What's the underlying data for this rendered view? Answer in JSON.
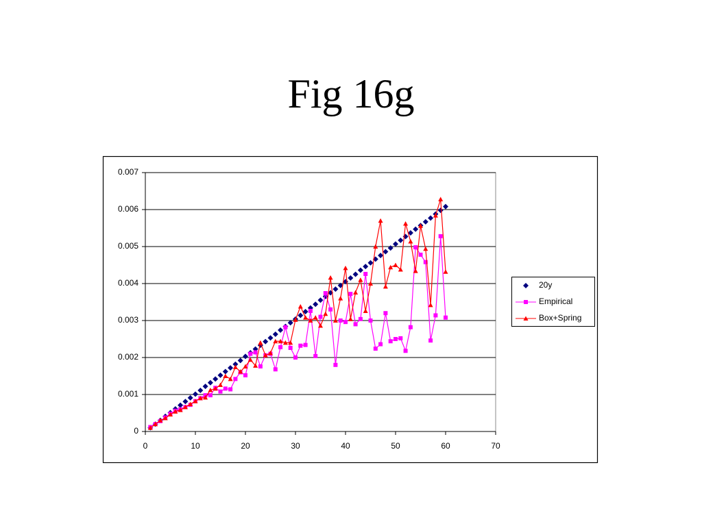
{
  "slide_title": "Fig 16g",
  "chart_data": {
    "type": "scatter",
    "x": [
      1,
      2,
      3,
      4,
      5,
      6,
      7,
      8,
      9,
      10,
      11,
      12,
      13,
      14,
      15,
      16,
      17,
      18,
      19,
      20,
      21,
      22,
      23,
      24,
      25,
      26,
      27,
      28,
      29,
      30,
      31,
      32,
      33,
      34,
      35,
      36,
      37,
      38,
      39,
      40,
      41,
      42,
      43,
      44,
      45,
      46,
      47,
      48,
      49,
      50,
      51,
      52,
      53,
      54,
      55,
      56,
      57,
      58,
      59,
      60
    ],
    "xlim": [
      0,
      70
    ],
    "xticks": [
      0,
      10,
      20,
      30,
      40,
      50,
      60,
      70
    ],
    "ylim": [
      0,
      0.007
    ],
    "yticks": [
      0,
      0.001,
      0.002,
      0.003,
      0.004,
      0.005,
      0.006,
      0.007
    ],
    "grid": true,
    "legend": "right",
    "series": [
      {
        "name": "20y",
        "color": "#000080",
        "marker": "diamond",
        "line": false,
        "values": [
          0.0001,
          0.0002,
          0.0003,
          0.00041,
          0.00051,
          0.00061,
          0.00071,
          0.00081,
          0.00091,
          0.00101,
          0.00111,
          0.00122,
          0.00132,
          0.00142,
          0.00152,
          0.00162,
          0.00172,
          0.00182,
          0.00192,
          0.00203,
          0.00213,
          0.00223,
          0.00233,
          0.00243,
          0.00253,
          0.00263,
          0.00274,
          0.00284,
          0.00294,
          0.00304,
          0.00314,
          0.00324,
          0.00334,
          0.00344,
          0.00355,
          0.00365,
          0.00375,
          0.00385,
          0.00395,
          0.00405,
          0.00415,
          0.00425,
          0.00436,
          0.00446,
          0.00456,
          0.00466,
          0.00476,
          0.00486,
          0.00496,
          0.00507,
          0.00517,
          0.00527,
          0.00537,
          0.00547,
          0.00557,
          0.00567,
          0.00577,
          0.00588,
          0.00598,
          0.00608
        ]
      },
      {
        "name": "Empirical",
        "color": "#ff00ff",
        "marker": "square",
        "line": true,
        "values": [
          0.00012,
          0.0002,
          0.00028,
          0.00038,
          0.00048,
          0.00056,
          0.0006,
          0.00066,
          0.00072,
          0.00082,
          0.0009,
          0.00098,
          0.00098,
          0.00118,
          0.00108,
          0.00116,
          0.00114,
          0.00142,
          0.0016,
          0.00152,
          0.0021,
          0.00214,
          0.00176,
          0.00206,
          0.0021,
          0.00168,
          0.00228,
          0.00282,
          0.00226,
          0.002,
          0.00232,
          0.00234,
          0.00326,
          0.00204,
          0.0031,
          0.00374,
          0.0033,
          0.0018,
          0.003,
          0.00296,
          0.00372,
          0.0029,
          0.00304,
          0.00426,
          0.003,
          0.00224,
          0.00236,
          0.0032,
          0.00244,
          0.0025,
          0.00252,
          0.00218,
          0.00282,
          0.00498,
          0.00478,
          0.00458,
          0.00246,
          0.00314,
          0.00528,
          0.00308
        ]
      },
      {
        "name": "Box+Spring",
        "color": "#ff0000",
        "marker": "triangle",
        "line": true,
        "values": [
          0.0001,
          0.0002,
          0.0003,
          0.00036,
          0.00046,
          0.00054,
          0.00058,
          0.00066,
          0.00074,
          0.00082,
          0.0009,
          0.00092,
          0.00112,
          0.00116,
          0.00126,
          0.0015,
          0.00142,
          0.00174,
          0.00162,
          0.00176,
          0.00194,
          0.00178,
          0.0024,
          0.00206,
          0.00212,
          0.00244,
          0.00244,
          0.0024,
          0.0024,
          0.00302,
          0.00338,
          0.00308,
          0.003,
          0.00308,
          0.00286,
          0.00318,
          0.00416,
          0.003,
          0.0036,
          0.00442,
          0.00304,
          0.00376,
          0.0041,
          0.00326,
          0.004,
          0.005,
          0.0057,
          0.00392,
          0.00444,
          0.0045,
          0.00438,
          0.00562,
          0.00514,
          0.00434,
          0.00556,
          0.00494,
          0.00342,
          0.00584,
          0.00628,
          0.00432
        ]
      }
    ]
  }
}
